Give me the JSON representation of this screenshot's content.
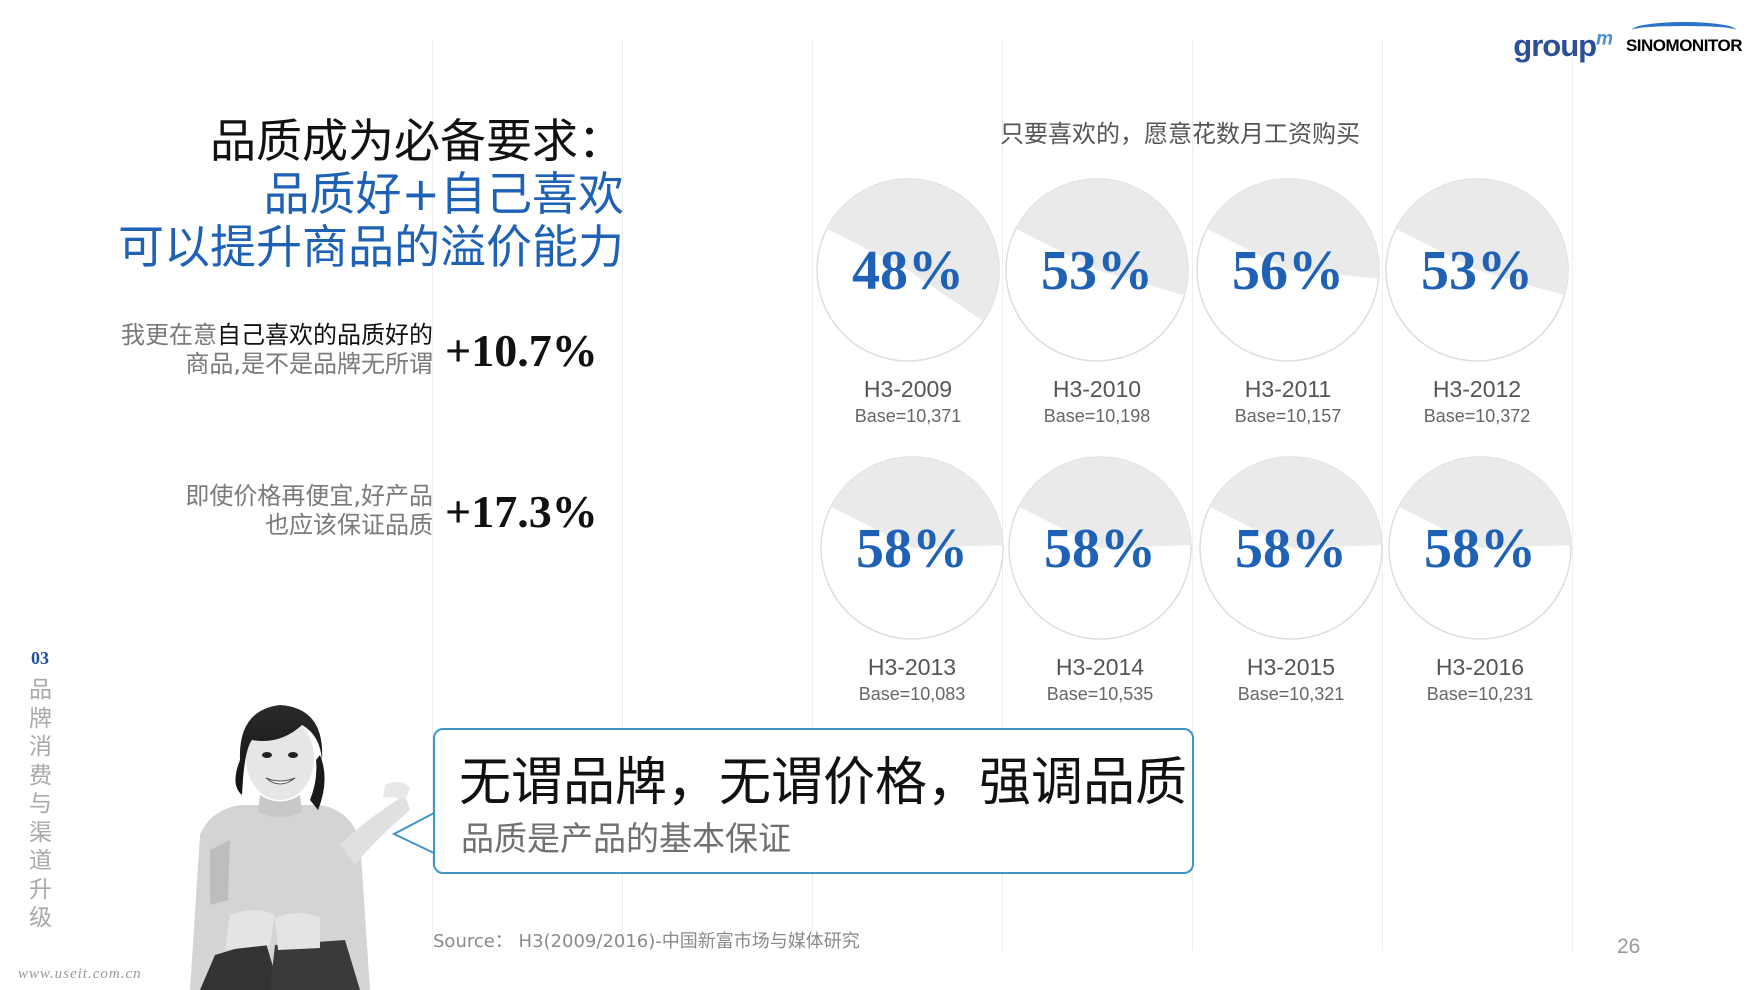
{
  "logos": {
    "groupm": "group",
    "groupm_sup": "m",
    "sinomonitor": "SINOMONITOR"
  },
  "headline": {
    "line1": "品质成为必备要求：",
    "line2": "品质好+自己喜欢",
    "line3": "可以提升商品的溢价能力"
  },
  "stats": [
    {
      "text_a": "我更在意",
      "text_b": "自己喜欢的品质好的",
      "text_c": "商品,是不是品牌无所谓",
      "value": "+10.7%"
    },
    {
      "text_line1": "即使价格再便宜,好产品",
      "text_line2": "也应该保证品质",
      "value": "+17.3%"
    }
  ],
  "side": {
    "number": "03",
    "text": "品牌消费与渠道升级"
  },
  "watermark": "www.useit.com.cn",
  "bubble": {
    "main": "无谓品牌，无谓价格，强调品质",
    "sub": "品质是产品的基本保证"
  },
  "chart_data": {
    "type": "pie",
    "title": "只要喜欢的，愿意花数月工资购买",
    "unit": "%",
    "colors": {
      "value": "#1f62b5",
      "remainder": "#eaeaea",
      "outline": "#dddddd"
    },
    "pies": [
      {
        "label": "H3-2009",
        "base": "Base=10,371",
        "value": 48,
        "display": "48%"
      },
      {
        "label": "H3-2010",
        "base": "Base=10,198",
        "value": 53,
        "display": "53%"
      },
      {
        "label": "H3-2011",
        "base": "Base=10,157",
        "value": 56,
        "display": "56%"
      },
      {
        "label": "H3-2012",
        "base": "Base=10,372",
        "value": 53,
        "display": "53%"
      },
      {
        "label": "H3-2013",
        "base": "Base=10,083",
        "value": 58,
        "display": "58%"
      },
      {
        "label": "H3-2014",
        "base": "Base=10,535",
        "value": 58,
        "display": "58%"
      },
      {
        "label": "H3-2015",
        "base": "Base=10,321",
        "value": 58,
        "display": "58%"
      },
      {
        "label": "H3-2016",
        "base": "Base=10,231",
        "value": 58,
        "display": "58%"
      }
    ]
  },
  "source": "Source： H3(2009/2016)-中国新富市场与媒体研究",
  "page_number": "26"
}
